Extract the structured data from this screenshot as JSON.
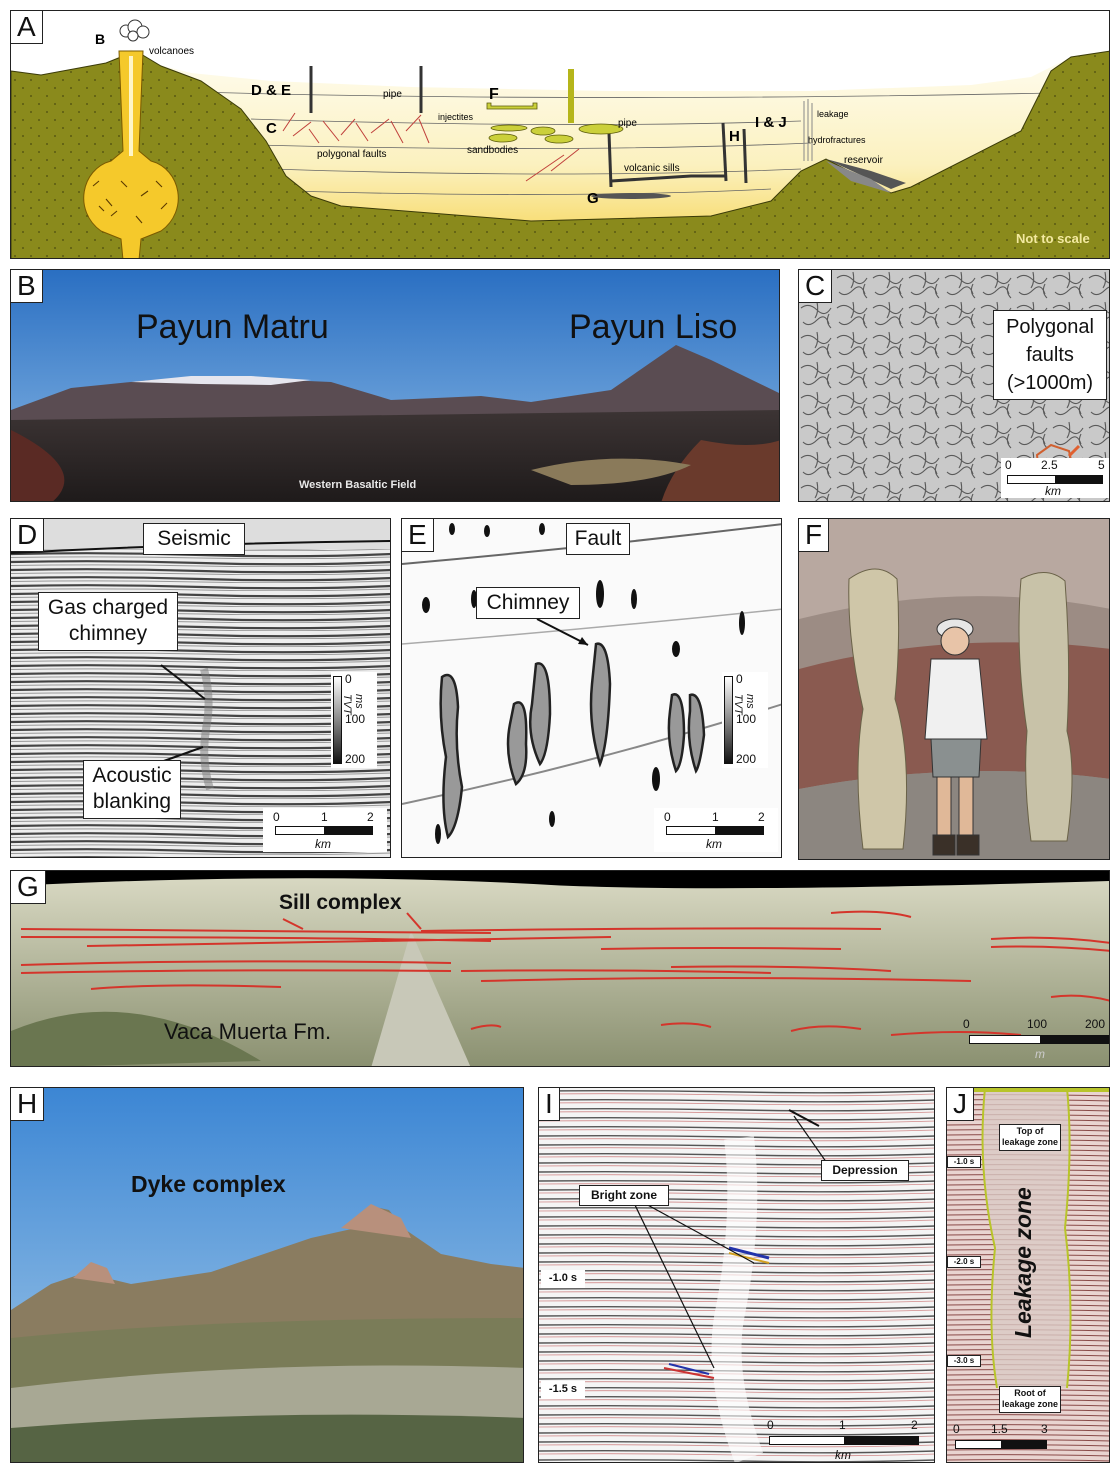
{
  "panel_a": {
    "letter": "A",
    "labels": {
      "b": "B",
      "volcanoes": "volcanoes",
      "de": "D & E",
      "c": "C",
      "pipe1": "pipe",
      "polygonal_faults": "polygonal faults",
      "f": "F",
      "injectites": "injectites",
      "sandbodies": "sandbodies",
      "pipe2": "pipe",
      "volcanic_sills": "volcanic sills",
      "g": "G",
      "h": "H",
      "ij": "I & J",
      "leakage": "leakage",
      "hydrofractures": "hydrofractures",
      "reservoir": "reservoir",
      "not_to_scale": "Not to scale"
    }
  },
  "panel_b": {
    "letter": "B",
    "left_title": "Payun Matru",
    "right_title": "Payun Liso",
    "caption": "Western Basaltic Field"
  },
  "panel_c": {
    "letter": "C",
    "box_text": [
      "Polygonal",
      "faults",
      "(>1000m)"
    ],
    "scale": {
      "ticks": [
        "0",
        "2.5",
        "5"
      ],
      "unit": "km"
    }
  },
  "panel_d": {
    "letter": "D",
    "title": "Seismic",
    "box1": [
      "Gas charged",
      "chimney"
    ],
    "box2": [
      "Acoustic",
      "blanking"
    ],
    "colorbar": {
      "ticks": [
        "0",
        "100",
        "200"
      ],
      "unit": "ms TVT"
    },
    "scale": {
      "ticks": [
        "0",
        "1",
        "2"
      ],
      "unit": "km"
    }
  },
  "panel_e": {
    "letter": "E",
    "title": "Fault",
    "box1": "Chimney",
    "colorbar": {
      "ticks": [
        "0",
        "100",
        "200"
      ],
      "unit": "ms TVT"
    },
    "scale": {
      "ticks": [
        "0",
        "1",
        "2"
      ],
      "unit": "km"
    }
  },
  "panel_f": {
    "letter": "F"
  },
  "panel_g": {
    "letter": "G",
    "sill_label": "Sill complex",
    "formation": "Vaca Muerta Fm.",
    "scale": {
      "ticks": [
        "0",
        "100",
        "200"
      ],
      "unit": "m"
    }
  },
  "panel_h": {
    "letter": "H",
    "title": "Dyke complex"
  },
  "panel_i": {
    "letter": "I",
    "depression": "Depression",
    "bright_zone": "Bright zone",
    "t1": "-1.0 s",
    "t2": "-1.5 s",
    "scale": {
      "ticks": [
        "0",
        "1",
        "2"
      ],
      "unit": "km"
    }
  },
  "panel_j": {
    "letter": "J",
    "top": [
      "Top of",
      "leakage zone"
    ],
    "root": [
      "Root of",
      "leakage zone"
    ],
    "zone": "Leakage zone",
    "t1": "-1.0 s",
    "t2": "-2.0 s",
    "t3": "-3.0 s",
    "scale": {
      "ticks": [
        "0",
        "1.5",
        "3"
      ]
    }
  },
  "colors": {
    "host_rock": "#8a8a1c",
    "basin": "#f9efb0",
    "magma": "#f5c92b",
    "sill_red": "#d4352b",
    "sky": "#3c86d4"
  }
}
